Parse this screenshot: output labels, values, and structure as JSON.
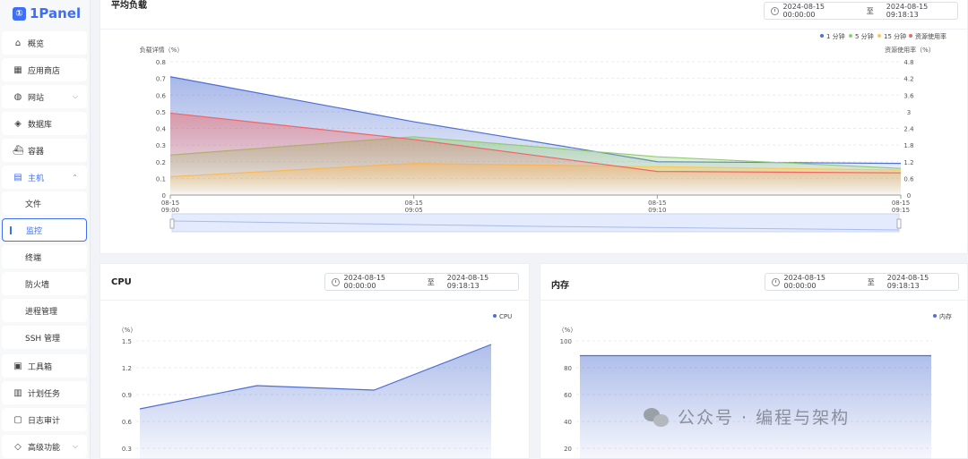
{
  "app": {
    "logo_text": "1Panel"
  },
  "sidebar": {
    "items": [
      {
        "label": "概览",
        "icon": "home-icon"
      },
      {
        "label": "应用商店",
        "icon": "grid-icon"
      },
      {
        "label": "网站",
        "icon": "globe-icon",
        "expandable": true
      },
      {
        "label": "数据库",
        "icon": "database-icon"
      },
      {
        "label": "容器",
        "icon": "container-icon"
      },
      {
        "label": "主机",
        "icon": "server-icon",
        "expandable": true,
        "expanded": true
      },
      {
        "label": "文件"
      },
      {
        "label": "监控",
        "selected": true
      },
      {
        "label": "终端"
      },
      {
        "label": "防火墙"
      },
      {
        "label": "进程管理"
      },
      {
        "label": "SSH 管理"
      },
      {
        "label": "工具箱",
        "icon": "toolbox-icon"
      },
      {
        "label": "计划任务",
        "icon": "calendar-icon"
      },
      {
        "label": "日志审计",
        "icon": "log-icon"
      },
      {
        "label": "高级功能",
        "icon": "diamond-icon",
        "expandable": true
      }
    ]
  },
  "load_panel": {
    "title": "平均负载",
    "date_start": "2024-08-15 00:00:00",
    "date_sep": "至",
    "date_end": "2024-08-15 09:18:13"
  },
  "cpu_panel": {
    "title": "CPU",
    "date_start": "2024-08-15 00:00:00",
    "date_sep": "至",
    "date_end": "2024-08-15 09:18:13"
  },
  "mem_panel": {
    "title": "内存",
    "date_start": "2024-08-15 00:00:00",
    "date_sep": "至",
    "date_end": "2024-08-15 09:18:13"
  },
  "watermark": {
    "text": "公众号 · 编程与架构"
  },
  "colors": {
    "accent": "#3d6ef5",
    "series1": "#4e6fd1",
    "series5": "#91cc75",
    "series15": "#fac858",
    "usage": "#ee6666"
  },
  "chart_data": [
    {
      "type": "area",
      "ylabel": "负载详情（%）",
      "y2label": "资源使用率（%）",
      "x": [
        "08-15\n09:00",
        "08-15\n09:05",
        "08-15\n09:10",
        "08-15\n09:15"
      ],
      "ylim": [
        0,
        0.8
      ],
      "yticks": [
        "0",
        "0.1",
        "0.2",
        "0.3",
        "0.4",
        "0.5",
        "0.6",
        "0.7",
        "0.8"
      ],
      "y2lim": [
        0,
        4.8
      ],
      "y2ticks": [
        "0",
        "0.6",
        "1.2",
        "1.8",
        "2.4",
        "3",
        "3.6",
        "4.2",
        "4.8"
      ],
      "legend_position": "top-right",
      "series": [
        {
          "name": "1 分钟",
          "color": "#4e6fd1",
          "values": [
            0.71,
            0.44,
            0.2,
            0.19
          ],
          "axis": "left"
        },
        {
          "name": "5 分钟",
          "color": "#91cc75",
          "values": [
            0.24,
            0.35,
            0.23,
            0.16
          ],
          "axis": "left"
        },
        {
          "name": "15 分钟",
          "color": "#fac858",
          "values": [
            0.11,
            0.19,
            0.17,
            0.15
          ],
          "axis": "left"
        },
        {
          "name": "资源使用率",
          "color": "#ee6666",
          "values": [
            2.95,
            2.0,
            0.85,
            0.8
          ],
          "axis": "right"
        }
      ]
    },
    {
      "type": "area",
      "ylabel": "（%）",
      "yticks": [
        "0.3",
        "0.6",
        "0.9",
        "1.2",
        "1.5"
      ],
      "legend_position": "top-right",
      "series": [
        {
          "name": "CPU",
          "color": "#4e6fd1",
          "values": [
            0.74,
            1.0,
            0.95,
            1.46
          ]
        }
      ]
    },
    {
      "type": "area",
      "ylabel": "（%）",
      "yticks": [
        "20",
        "40",
        "60",
        "80",
        "100"
      ],
      "legend_position": "top-right",
      "series": [
        {
          "name": "内存",
          "color": "#4e6fd1",
          "values": [
            89,
            89,
            89,
            89
          ]
        }
      ]
    }
  ]
}
